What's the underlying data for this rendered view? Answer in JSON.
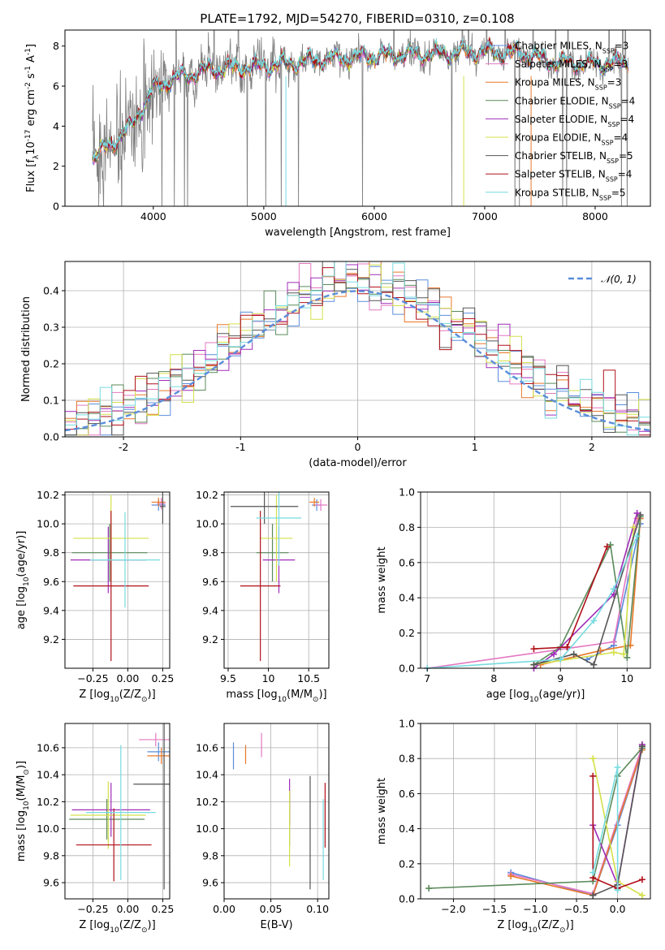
{
  "title": "PLATE=1792, MJD=54270, FIBERID=0310, z=0.108",
  "colors": {
    "Chabrier MILES": "#5b8ddb",
    "Salpeter MILES": "#e377c2",
    "Kroupa MILES": "#e8782a",
    "Chabrier ELODIE": "#5a8a5a",
    "Salpeter ELODIE": "#a02cb8",
    "Kroupa ELODIE": "#d4e04a",
    "Chabrier STELIB": "#555555",
    "Salpeter STELIB": "#b0101a",
    "Kroupa STELIB": "#76dbe0",
    "data": "#808080",
    "normal": "#5b8ddb",
    "grid": "#b0b0b0"
  },
  "chart_data": [
    {
      "id": "spectrum",
      "type": "line",
      "xlabel": "wavelength [Angstrom, rest frame]",
      "ylabel": "Flux [f$_\\lambda$10$^{-17}$ erg cm$^{-2}$ s$^{-1}$ A$^{-1}$]",
      "xlim": [
        3200,
        8500
      ],
      "ylim": [
        0,
        8.8
      ],
      "xticks": [
        4000,
        5000,
        6000,
        7000,
        8000
      ],
      "yticks": [
        0,
        2,
        4,
        6,
        8
      ],
      "grid": false,
      "legend_position": "right",
      "legend": [
        "Chabrier MILES, N$_{SSP}$=3",
        "Salpeter MILES, N$_{SSP}$=3",
        "Kroupa MILES, N$_{SSP}$=3",
        "Chabrier ELODIE, N$_{SSP}$=4",
        "Salpeter ELODIE, N$_{SSP}$=4",
        "Kroupa ELODIE, N$_{SSP}$=4",
        "Chabrier STELIB, N$_{SSP}$=5",
        "Salpeter STELIB, N$_{SSP}$=4",
        "Kroupa STELIB, N$_{SSP}$=5"
      ],
      "continuum": {
        "x": [
          3450,
          3600,
          3800,
          4000,
          4200,
          4500,
          5000,
          5500,
          6000,
          6500,
          7000,
          7400,
          7600,
          8000,
          8300
        ],
        "y": [
          2.4,
          3.0,
          4.0,
          5.9,
          6.4,
          6.8,
          7.0,
          7.3,
          7.5,
          7.6,
          7.7,
          7.6,
          7.2,
          7.1,
          7.2
        ]
      }
    },
    {
      "id": "residual_hist",
      "type": "line",
      "xlabel": "(data-model)/error",
      "ylabel": "Normed distribution",
      "xlim": [
        -2.5,
        2.5
      ],
      "ylim": [
        0,
        0.48
      ],
      "xticks": [
        -2,
        -1,
        0,
        1,
        2
      ],
      "yticks": [
        0.0,
        0.1,
        0.2,
        0.3,
        0.4
      ],
      "grid": true,
      "legend_position": "top-right",
      "normal_label": "𝒩(0, 1)",
      "normal": {
        "mu": 0,
        "sigma": 1
      }
    },
    {
      "id": "age_vs_Z",
      "type": "scatter",
      "xlabel": "Z [log$_{10}$(Z/Z$_\\odot$)]",
      "ylabel": "age  [log$_{10}$(age/yr)]",
      "xlim": [
        -0.45,
        0.3
      ],
      "ylim": [
        9.0,
        10.22
      ],
      "xticks": [
        -0.25,
        0.0,
        0.25
      ],
      "xticklabels": [
        "−0.25",
        "0.00",
        "0.25"
      ],
      "yticks": [
        9.2,
        9.4,
        9.6,
        9.8,
        10.0,
        10.2
      ],
      "grid": true,
      "points": [
        {
          "model": "Chabrier MILES",
          "x": 0.22,
          "xerr": 0.05,
          "y": 10.13,
          "yerr": 0.04
        },
        {
          "model": "Salpeter MILES",
          "x": 0.24,
          "xerr": 0.03,
          "y": 10.14,
          "yerr": 0.04
        },
        {
          "model": "Kroupa MILES",
          "x": 0.22,
          "xerr": 0.05,
          "y": 10.15,
          "yerr": 0.03
        },
        {
          "model": "Chabrier ELODIE",
          "x": -0.13,
          "xerr": 0.27,
          "y": 9.8,
          "yerr": 0.2
        },
        {
          "model": "Salpeter ELODIE",
          "x": -0.14,
          "xerr": 0.27,
          "y": 9.75,
          "yerr": 0.23
        },
        {
          "model": "Kroupa ELODIE",
          "x": -0.12,
          "xerr": 0.27,
          "y": 9.9,
          "yerr": 0.3
        },
        {
          "model": "Chabrier STELIB",
          "x": 0.25,
          "xerr": 0.02,
          "y": 10.12,
          "yerr": 0.12
        },
        {
          "model": "Salpeter STELIB",
          "x": -0.12,
          "xerr": 0.27,
          "y": 9.57,
          "yerr": 0.52
        },
        {
          "model": "Kroupa STELIB",
          "x": -0.02,
          "xerr": 0.25,
          "y": 9.75,
          "yerr": 0.33
        }
      ]
    },
    {
      "id": "age_vs_mass",
      "type": "scatter",
      "xlabel": "mass [log$_{10}$(M/M$_\\odot$)]",
      "ylabel": "",
      "xlim": [
        9.45,
        10.75
      ],
      "ylim": [
        9.0,
        10.22
      ],
      "xticks": [
        9.5,
        10.0,
        10.5
      ],
      "yticks": [
        9.2,
        9.4,
        9.6,
        9.8,
        10.0,
        10.2
      ],
      "grid": true,
      "points": [
        {
          "model": "Chabrier MILES",
          "x": 10.6,
          "xerr": 0.06,
          "y": 10.13,
          "yerr": 0.04
        },
        {
          "model": "Salpeter MILES",
          "x": 10.65,
          "xerr": 0.08,
          "y": 10.13,
          "yerr": 0.04
        },
        {
          "model": "Kroupa MILES",
          "x": 10.57,
          "xerr": 0.06,
          "y": 10.15,
          "yerr": 0.03
        },
        {
          "model": "Chabrier ELODIE",
          "x": 10.05,
          "xerr": 0.2,
          "y": 9.8,
          "yerr": 0.2
        },
        {
          "model": "Salpeter ELODIE",
          "x": 10.13,
          "xerr": 0.2,
          "y": 9.75,
          "yerr": 0.23
        },
        {
          "model": "Kroupa ELODIE",
          "x": 10.1,
          "xerr": 0.2,
          "y": 9.9,
          "yerr": 0.3
        },
        {
          "model": "Chabrier STELIB",
          "x": 9.95,
          "xerr": 0.42,
          "y": 10.12,
          "yerr": 0.12
        },
        {
          "model": "Salpeter STELIB",
          "x": 9.9,
          "xerr": 0.25,
          "y": 9.57,
          "yerr": 0.52
        },
        {
          "model": "Kroupa STELIB",
          "x": 10.13,
          "xerr": 0.28,
          "y": 10.04,
          "yerr": 0.33
        }
      ]
    },
    {
      "id": "weight_vs_age",
      "type": "line",
      "xlabel": "age  [log$_{10}$(age/yr)]",
      "ylabel": "mass weight",
      "xlim": [
        6.9,
        10.35
      ],
      "ylim": [
        0,
        1.0
      ],
      "xticks": [
        7,
        8,
        9,
        10
      ],
      "yticks": [
        0.0,
        0.2,
        0.4,
        0.6,
        0.8,
        1.0
      ],
      "grid": true,
      "series": [
        {
          "model": "Chabrier MILES",
          "x": [
            9.4,
            9.8,
            10.2
          ],
          "y": [
            0.05,
            0.13,
            0.82
          ]
        },
        {
          "model": "Salpeter MILES",
          "x": [
            7.0,
            9.8,
            10.15
          ],
          "y": [
            0.0,
            0.15,
            0.85
          ]
        },
        {
          "model": "Kroupa MILES",
          "x": [
            8.7,
            9.6,
            10.05,
            10.2
          ],
          "y": [
            0.02,
            0.1,
            0.13,
            0.85
          ]
        },
        {
          "model": "Chabrier ELODIE",
          "x": [
            8.6,
            9.0,
            9.75,
            10.0,
            10.2
          ],
          "y": [
            0.02,
            0.12,
            0.7,
            0.06,
            0.86
          ]
        },
        {
          "model": "Salpeter ELODIE",
          "x": [
            8.6,
            8.9,
            9.8,
            10.15
          ],
          "y": [
            0.0,
            0.08,
            0.42,
            0.88
          ]
        },
        {
          "model": "Kroupa ELODIE",
          "x": [
            8.6,
            9.8,
            9.95,
            10.1
          ],
          "y": [
            0.02,
            0.09,
            0.08,
            0.8
          ]
        },
        {
          "model": "Chabrier STELIB",
          "x": [
            8.6,
            9.2,
            9.5,
            10.2
          ],
          "y": [
            0.02,
            0.08,
            0.02,
            0.87
          ]
        },
        {
          "model": "Salpeter STELIB",
          "x": [
            8.6,
            9.1,
            9.7
          ],
          "y": [
            0.11,
            0.12,
            0.69
          ]
        },
        {
          "model": "Kroupa STELIB",
          "x": [
            7.0,
            9.0,
            9.5,
            9.8,
            10.15
          ],
          "y": [
            0.0,
            0.05,
            0.27,
            0.45,
            0.75
          ]
        }
      ]
    },
    {
      "id": "mass_vs_Z",
      "type": "scatter",
      "xlabel": "Z [log$_{10}$(Z/Z$_\\odot$)]",
      "ylabel": "mass [log$_{10}$(M/M$_\\odot$)]",
      "xlim": [
        -0.45,
        0.3
      ],
      "ylim": [
        9.48,
        10.78
      ],
      "xticks": [
        -0.25,
        0.0,
        0.25
      ],
      "xticklabels": [
        "−0.25",
        "0.00",
        "0.25"
      ],
      "yticks": [
        9.6,
        9.8,
        10.0,
        10.2,
        10.4,
        10.6
      ],
      "grid": true,
      "points": [
        {
          "model": "Chabrier MILES",
          "x": 0.22,
          "xerr": 0.08,
          "y": 10.57,
          "yerr": 0.07
        },
        {
          "model": "Salpeter MILES",
          "x": 0.2,
          "xerr": 0.12,
          "y": 10.66,
          "yerr": 0.05
        },
        {
          "model": "Kroupa MILES",
          "x": 0.24,
          "xerr": 0.1,
          "y": 10.54,
          "yerr": 0.06
        },
        {
          "model": "Chabrier ELODIE",
          "x": -0.15,
          "xerr": 0.27,
          "y": 10.07,
          "yerr": 0.15
        },
        {
          "model": "Salpeter ELODIE",
          "x": -0.12,
          "xerr": 0.28,
          "y": 10.14,
          "yerr": 0.2
        },
        {
          "model": "Kroupa ELODIE",
          "x": -0.14,
          "xerr": 0.27,
          "y": 10.1,
          "yerr": 0.25
        },
        {
          "model": "Chabrier STELIB",
          "x": 0.26,
          "xerr": 0.22,
          "y": 10.33,
          "yerr": 0.78
        },
        {
          "model": "Salpeter STELIB",
          "x": -0.1,
          "xerr": 0.27,
          "y": 9.88,
          "yerr": 0.27
        },
        {
          "model": "Kroupa STELIB",
          "x": -0.05,
          "xerr": 0.25,
          "y": 10.12,
          "yerr": 0.5
        }
      ]
    },
    {
      "id": "mass_vs_ebv",
      "type": "scatter",
      "xlabel": "E(B-V)",
      "ylabel": "",
      "xlim": [
        0.0,
        0.112
      ],
      "ylim": [
        9.48,
        10.78
      ],
      "xticks": [
        0.0,
        0.05,
        0.1
      ],
      "xticklabels": [
        "0.00",
        "0.05",
        "0.10"
      ],
      "yticks": [
        9.6,
        9.8,
        10.0,
        10.2,
        10.4,
        10.6
      ],
      "grid": true,
      "points": [
        {
          "model": "Chabrier MILES",
          "x": 0.01,
          "xerr": 0,
          "y": 10.54,
          "yerr": 0.1
        },
        {
          "model": "Salpeter MILES",
          "x": 0.04,
          "xerr": 0,
          "y": 10.62,
          "yerr": 0.09
        },
        {
          "model": "Kroupa MILES",
          "x": 0.023,
          "xerr": 0,
          "y": 10.55,
          "yerr": 0.07
        },
        {
          "model": "Chabrier ELODIE",
          "x": 0.07,
          "xerr": 0,
          "y": 10.07,
          "yerr": 0.2
        },
        {
          "model": "Salpeter ELODIE",
          "x": 0.07,
          "xerr": 0,
          "y": 10.2,
          "yerr": 0.17
        },
        {
          "model": "Kroupa ELODIE",
          "x": 0.07,
          "xerr": 0,
          "y": 10.0,
          "yerr": 0.28
        },
        {
          "model": "Chabrier STELIB",
          "x": 0.092,
          "xerr": 0,
          "y": 9.97,
          "yerr": 0.42
        },
        {
          "model": "Salpeter STELIB",
          "x": 0.108,
          "xerr": 0,
          "y": 10.1,
          "yerr": 0.24
        },
        {
          "model": "Kroupa STELIB",
          "x": 0.106,
          "xerr": 0,
          "y": 9.92,
          "yerr": 0.3
        }
      ]
    },
    {
      "id": "weight_vs_Z",
      "type": "line",
      "xlabel": "Z [log$_{10}$(Z/Z$_\\odot$)]",
      "ylabel": "mass weight",
      "xlim": [
        -2.4,
        0.4
      ],
      "ylim": [
        0,
        1.0
      ],
      "xticks": [
        -2.0,
        -1.5,
        -1.0,
        -0.5,
        0.0
      ],
      "xticklabels": [
        "−2.0",
        "−1.5",
        "−1.0",
        "−0.5",
        "0.0"
      ],
      "yticks": [
        0.0,
        0.2,
        0.4,
        0.6,
        0.8,
        1.0
      ],
      "grid": true,
      "series": [
        {
          "model": "Chabrier MILES",
          "x": [
            -1.3,
            -0.3,
            0.0,
            0.3
          ],
          "y": [
            0.15,
            0.02,
            0.42,
            0.85
          ]
        },
        {
          "model": "Salpeter MILES",
          "x": [
            -1.3,
            -0.3,
            0.3
          ],
          "y": [
            0.14,
            0.03,
            0.87
          ]
        },
        {
          "model": "Kroupa MILES",
          "x": [
            -1.3,
            -0.3,
            0.3
          ],
          "y": [
            0.13,
            0.02,
            0.85
          ]
        },
        {
          "model": "Chabrier ELODIE",
          "x": [
            -2.3,
            -0.3,
            0.0,
            0.3
          ],
          "y": [
            0.06,
            0.1,
            0.7,
            0.86
          ]
        },
        {
          "model": "Salpeter ELODIE",
          "x": [
            -0.3,
            0.0,
            0.3
          ],
          "y": [
            0.42,
            0.08,
            0.88
          ]
        },
        {
          "model": "Kroupa ELODIE",
          "x": [
            -0.3,
            0.0,
            0.3
          ],
          "y": [
            0.8,
            0.1,
            0.02
          ]
        },
        {
          "model": "Chabrier STELIB",
          "x": [
            -0.3,
            0.0,
            0.3
          ],
          "y": [
            0.02,
            0.08,
            0.87
          ]
        },
        {
          "model": "Salpeter STELIB",
          "x": [
            -0.3,
            -0.3,
            0.0,
            0.3
          ],
          "y": [
            0.7,
            0.12,
            0.06,
            0.11
          ]
        },
        {
          "model": "Kroupa STELIB",
          "x": [
            -0.3,
            0.0,
            0.0
          ],
          "y": [
            0.15,
            0.75,
            0.05
          ]
        }
      ]
    }
  ]
}
